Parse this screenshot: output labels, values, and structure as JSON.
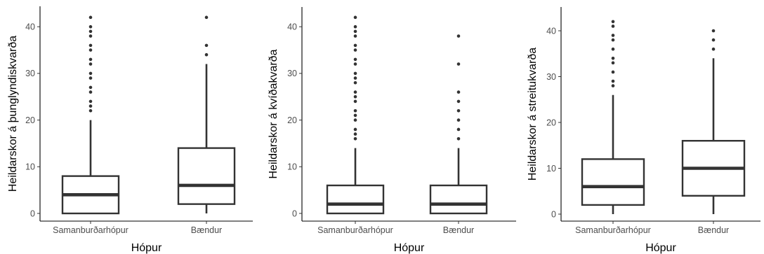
{
  "chart_data": [
    {
      "type": "boxplot",
      "xlabel": "Hópur",
      "ylabel": "Heildarskor á þunglyndiskvarða",
      "ylim": [
        -1.5,
        44
      ],
      "yticks": [
        0,
        10,
        20,
        30,
        40
      ],
      "categories": [
        "Samanburðarhópur",
        "Bændur"
      ],
      "boxes": [
        {
          "q1": 0,
          "median": 4,
          "q3": 8,
          "whisker_low": 0,
          "whisker_high": 20,
          "outliers": [
            22,
            23,
            24,
            26,
            27,
            29,
            30,
            32,
            33,
            35,
            36,
            38,
            39,
            40,
            42
          ]
        },
        {
          "q1": 2,
          "median": 6,
          "q3": 14,
          "whisker_low": 0,
          "whisker_high": 32,
          "outliers": [
            34,
            36,
            42
          ]
        }
      ]
    },
    {
      "type": "boxplot",
      "xlabel": "Hópur",
      "ylabel": "Heildarskor á kvíðakvarða",
      "ylim": [
        -1.5,
        44
      ],
      "yticks": [
        0,
        10,
        20,
        30,
        40
      ],
      "categories": [
        "Samanburðarhópur",
        "Bændur"
      ],
      "boxes": [
        {
          "q1": 0,
          "median": 2,
          "q3": 6,
          "whisker_low": 0,
          "whisker_high": 14,
          "outliers": [
            16,
            17,
            18,
            20,
            21,
            22,
            24,
            25,
            26,
            28,
            29,
            30,
            32,
            33,
            35,
            36,
            38,
            39,
            40,
            42
          ]
        },
        {
          "q1": 0,
          "median": 2,
          "q3": 6,
          "whisker_low": 0,
          "whisker_high": 14,
          "outliers": [
            16,
            18,
            20,
            22,
            24,
            26,
            32,
            38
          ]
        }
      ]
    },
    {
      "type": "boxplot",
      "xlabel": "Hópur",
      "ylabel": "Heildarskor á streitukvarða",
      "ylim": [
        -1.5,
        44
      ],
      "yticks": [
        0,
        10,
        20,
        30,
        40
      ],
      "categories": [
        "Samanburðarhópur",
        "Bændur"
      ],
      "boxes": [
        {
          "q1": 2,
          "median": 6,
          "q3": 12,
          "whisker_low": 0,
          "whisker_high": 26,
          "outliers": [
            28,
            29,
            31,
            33,
            34,
            36,
            38,
            39,
            41,
            42
          ]
        },
        {
          "q1": 4,
          "median": 10,
          "q3": 16,
          "whisker_low": 0,
          "whisker_high": 34,
          "outliers": [
            36,
            38,
            40
          ]
        }
      ]
    }
  ]
}
